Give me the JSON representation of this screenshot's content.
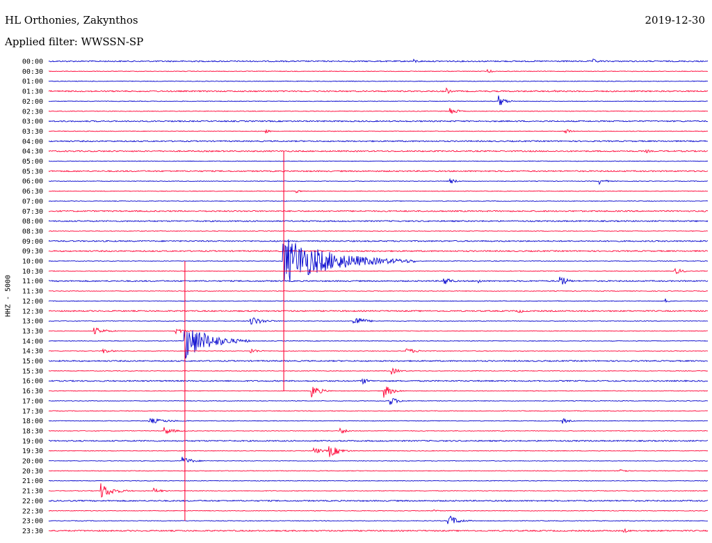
{
  "header": {
    "station": "HL Orthonies, Zakynthos",
    "date": "2019-12-30",
    "filter": "Applied filter: WWSSN-SP"
  },
  "chart_data": {
    "type": "line",
    "title": "HL Orthonies, Zakynthos",
    "ylabel": "HHZ - 5000",
    "colors": {
      "odd": "#0000cc",
      "even": "#ff0033"
    },
    "grid": false,
    "rows": [
      "00:00",
      "00:30",
      "01:00",
      "01:30",
      "02:00",
      "02:30",
      "03:00",
      "03:30",
      "04:00",
      "04:30",
      "05:00",
      "05:30",
      "06:00",
      "06:30",
      "07:00",
      "07:30",
      "08:00",
      "08:30",
      "09:00",
      "09:30",
      "10:00",
      "10:30",
      "11:00",
      "11:30",
      "12:00",
      "12:30",
      "13:00",
      "13:30",
      "14:00",
      "14:30",
      "15:00",
      "15:30",
      "16:00",
      "16:30",
      "17:00",
      "17:30",
      "18:00",
      "18:30",
      "19:00",
      "19:30",
      "20:00",
      "20:30",
      "21:00",
      "21:30",
      "22:00",
      "22:30",
      "23:00",
      "23:30"
    ],
    "row_minutes": 30,
    "noise": [
      2,
      1,
      1,
      2,
      1,
      1,
      2,
      1,
      2,
      2,
      1,
      2,
      1,
      1,
      1,
      2,
      2,
      1,
      2,
      2,
      1,
      1,
      2,
      1,
      1,
      2,
      1,
      1,
      1,
      1,
      2,
      1,
      2,
      1,
      1,
      1,
      1,
      1,
      2,
      1,
      1,
      1,
      1,
      1,
      2,
      1,
      1,
      2
    ],
    "events": [
      {
        "row": 0,
        "minute": 16.6,
        "amp": 3,
        "dur": 1.0
      },
      {
        "row": 0,
        "minute": 24.8,
        "amp": 3,
        "dur": 1.0
      },
      {
        "row": 1,
        "minute": 20.0,
        "amp": 3,
        "dur": 0.6
      },
      {
        "row": 3,
        "minute": 18.1,
        "amp": 5,
        "dur": 0.5
      },
      {
        "row": 3,
        "minute": 23.0,
        "amp": 3,
        "dur": 0.5
      },
      {
        "row": 4,
        "minute": 20.5,
        "amp": 8,
        "dur": 0.8
      },
      {
        "row": 5,
        "minute": 18.3,
        "amp": 6,
        "dur": 0.8
      },
      {
        "row": 7,
        "minute": 23.5,
        "amp": 5,
        "dur": 0.8
      },
      {
        "row": 7,
        "minute": 9.9,
        "amp": 3,
        "dur": 0.5
      },
      {
        "row": 9,
        "minute": 27.2,
        "amp": 3,
        "dur": 0.5
      },
      {
        "row": 12,
        "minute": 18.3,
        "amp": 4,
        "dur": 0.8
      },
      {
        "row": 12,
        "minute": 25.1,
        "amp": 4,
        "dur": 0.8
      },
      {
        "row": 13,
        "minute": 11.3,
        "amp": 3,
        "dur": 0.5
      },
      {
        "row": 20,
        "minute": 10.7,
        "amp": 36,
        "dur": 6.0
      },
      {
        "row": 21,
        "minute": 28.5,
        "amp": 5,
        "dur": 1.0
      },
      {
        "row": 22,
        "minute": 18.0,
        "amp": 8,
        "dur": 0.8
      },
      {
        "row": 22,
        "minute": 23.3,
        "amp": 9,
        "dur": 0.8
      },
      {
        "row": 22,
        "minute": 19.6,
        "amp": 3,
        "dur": 0.5
      },
      {
        "row": 24,
        "minute": 28.1,
        "amp": 3,
        "dur": 0.5
      },
      {
        "row": 25,
        "minute": 21.4,
        "amp": 3,
        "dur": 0.8
      },
      {
        "row": 26,
        "minute": 9.2,
        "amp": 7,
        "dur": 1.5
      },
      {
        "row": 26,
        "minute": 13.9,
        "amp": 8,
        "dur": 1.2
      },
      {
        "row": 27,
        "minute": 2.1,
        "amp": 5,
        "dur": 1.5
      },
      {
        "row": 27,
        "minute": 5.8,
        "amp": 4,
        "dur": 1.2
      },
      {
        "row": 28,
        "minute": 6.2,
        "amp": 28,
        "dur": 3.0
      },
      {
        "row": 29,
        "minute": 2.5,
        "amp": 4,
        "dur": 1.0
      },
      {
        "row": 29,
        "minute": 9.2,
        "amp": 4,
        "dur": 1.0
      },
      {
        "row": 29,
        "minute": 16.3,
        "amp": 4,
        "dur": 1.5
      },
      {
        "row": 31,
        "minute": 15.6,
        "amp": 5,
        "dur": 1.0
      },
      {
        "row": 32,
        "minute": 14.3,
        "amp": 5,
        "dur": 0.8
      },
      {
        "row": 33,
        "minute": 12.0,
        "amp": 9,
        "dur": 1.0
      },
      {
        "row": 33,
        "minute": 15.3,
        "amp": 9,
        "dur": 1.0
      },
      {
        "row": 34,
        "minute": 15.5,
        "amp": 7,
        "dur": 1.0
      },
      {
        "row": 36,
        "minute": 4.6,
        "amp": 4,
        "dur": 2.5
      },
      {
        "row": 36,
        "minute": 23.4,
        "amp": 4,
        "dur": 0.8
      },
      {
        "row": 37,
        "minute": 5.3,
        "amp": 5,
        "dur": 1.2
      },
      {
        "row": 37,
        "minute": 13.3,
        "amp": 4,
        "dur": 1.0
      },
      {
        "row": 39,
        "minute": 12.1,
        "amp": 5,
        "dur": 1.0
      },
      {
        "row": 39,
        "minute": 12.8,
        "amp": 9,
        "dur": 1.2
      },
      {
        "row": 40,
        "minute": 6.1,
        "amp": 6,
        "dur": 1.2
      },
      {
        "row": 41,
        "minute": 26.0,
        "amp": 7,
        "dur": 0.5
      },
      {
        "row": 43,
        "minute": 2.4,
        "amp": 11,
        "dur": 1.5
      },
      {
        "row": 43,
        "minute": 4.8,
        "amp": 4,
        "dur": 1.0
      },
      {
        "row": 45,
        "minute": 17.5,
        "amp": 3,
        "dur": 0.5
      },
      {
        "row": 46,
        "minute": 18.2,
        "amp": 9,
        "dur": 1.2
      },
      {
        "row": 47,
        "minute": 26.2,
        "amp": 4,
        "dur": 0.6
      }
    ],
    "teleseisms": [
      {
        "row": 20,
        "minute": 10.7,
        "up": 11,
        "down": 13
      },
      {
        "row": 28,
        "minute": 6.2,
        "up": 8,
        "down": 18
      }
    ]
  }
}
